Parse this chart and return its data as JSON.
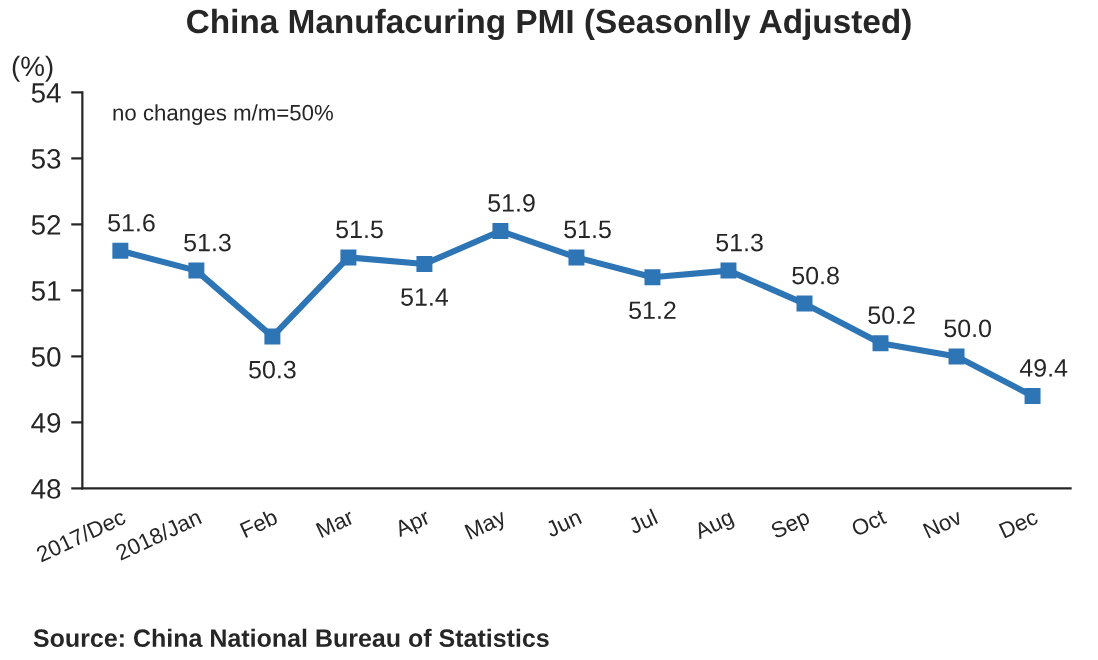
{
  "chart_data": {
    "type": "line",
    "title": "China Manufacuring PMI (Seasonlly Adjusted)",
    "ylabel": "(%)",
    "categories": [
      "2017/Dec",
      "2018/Jan",
      "Feb",
      "Mar",
      "Apr",
      "May",
      "Jun",
      "Jul",
      "Aug",
      "Sep",
      "Oct",
      "Nov",
      "Dec"
    ],
    "series": [
      {
        "color": "#2e75b6",
        "values": [
          51.6,
          51.3,
          50.3,
          51.5,
          51.4,
          51.9,
          51.5,
          51.2,
          51.3,
          50.8,
          50.2,
          50.0,
          49.4
        ]
      }
    ],
    "value_labels": [
      "51.6",
      "51.3",
      "50.3",
      "51.5",
      "51.4",
      "51.9",
      "51.5",
      "51.2",
      "51.3",
      "50.8",
      "50.2",
      "50.0",
      "49.4"
    ],
    "ylim": [
      48,
      54
    ],
    "yticks": [
      48,
      49,
      50,
      51,
      52,
      53,
      54
    ],
    "grid": false,
    "legend": false,
    "marker": "square",
    "line_style": "solid",
    "annotations": [
      "no changes m/m=50%",
      "Source: China National Bureau of Statistics"
    ]
  }
}
